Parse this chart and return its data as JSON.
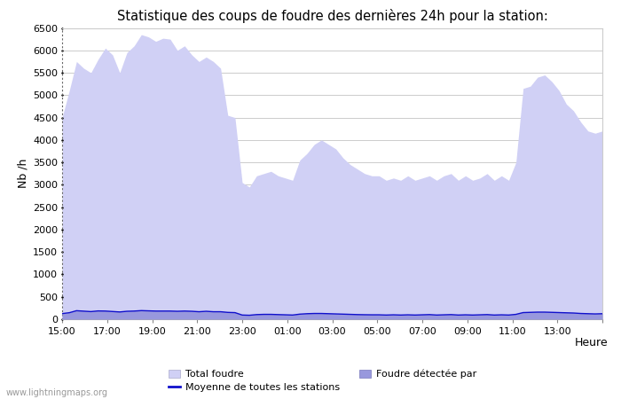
{
  "title": "Statistique des coups de foudre des dernières 24h pour la station:",
  "xlabel": "Heure",
  "ylabel": "Nb /h",
  "ylim": [
    0,
    6500
  ],
  "yticks": [
    0,
    500,
    1000,
    1500,
    2000,
    2500,
    3000,
    3500,
    4000,
    4500,
    5000,
    5500,
    6000,
    6500
  ],
  "xtick_labels": [
    "15:00",
    "17:00",
    "19:00",
    "21:00",
    "23:00",
    "01:00",
    "03:00",
    "05:00",
    "07:00",
    "09:00",
    "11:00",
    "13:00",
    ""
  ],
  "background_color": "#ffffff",
  "plot_bg_color": "#ffffff",
  "fill_color_total": "#d0d0f5",
  "fill_color_detected": "#9898dd",
  "line_color_moyenne": "#1010cc",
  "watermark": "www.lightningmaps.org",
  "legend_entries": [
    "Total foudre",
    "Moyenne de toutes les stations",
    "Foudre détectée par"
  ],
  "total_foudre": [
    4500,
    5100,
    5750,
    5600,
    5500,
    5800,
    6050,
    5900,
    5500,
    5950,
    6100,
    6350,
    6300,
    6200,
    6270,
    6250,
    6000,
    6100,
    5900,
    5750,
    5850,
    5750,
    5600,
    4550,
    4500,
    3050,
    2950,
    3200,
    3250,
    3300,
    3200,
    3150,
    3100,
    3550,
    3700,
    3900,
    4000,
    3900,
    3800,
    3600,
    3450,
    3350,
    3250,
    3200,
    3200,
    3100,
    3150,
    3100,
    3200,
    3100,
    3150,
    3200,
    3100,
    3200,
    3250,
    3100,
    3200,
    3100,
    3150,
    3250,
    3100,
    3200,
    3100,
    3500,
    5150,
    5200,
    5400,
    5450,
    5300,
    5100,
    4800,
    4650,
    4400,
    4200,
    4150,
    4200
  ],
  "foudre_detectee": [
    130,
    150,
    200,
    190,
    180,
    195,
    190,
    180,
    170,
    185,
    190,
    200,
    195,
    190,
    190,
    190,
    185,
    190,
    185,
    175,
    185,
    175,
    175,
    160,
    155,
    100,
    95,
    110,
    115,
    115,
    110,
    105,
    100,
    120,
    130,
    135,
    135,
    130,
    125,
    120,
    115,
    110,
    108,
    105,
    105,
    100,
    105,
    100,
    105,
    100,
    105,
    110,
    100,
    105,
    110,
    100,
    105,
    100,
    105,
    110,
    100,
    105,
    100,
    115,
    155,
    160,
    165,
    165,
    160,
    155,
    150,
    145,
    135,
    130,
    125,
    130
  ],
  "moyenne_stations": [
    125,
    145,
    190,
    180,
    170,
    185,
    182,
    172,
    162,
    177,
    182,
    192,
    187,
    182,
    182,
    182,
    177,
    182,
    177,
    167,
    177,
    167,
    167,
    152,
    147,
    93,
    88,
    103,
    108,
    108,
    103,
    98,
    93,
    113,
    123,
    128,
    128,
    123,
    118,
    113,
    108,
    103,
    100,
    98,
    98,
    93,
    98,
    93,
    98,
    93,
    98,
    103,
    93,
    98,
    103,
    93,
    98,
    93,
    98,
    103,
    93,
    98,
    93,
    108,
    148,
    153,
    158,
    158,
    153,
    148,
    143,
    138,
    128,
    123,
    118,
    123
  ]
}
